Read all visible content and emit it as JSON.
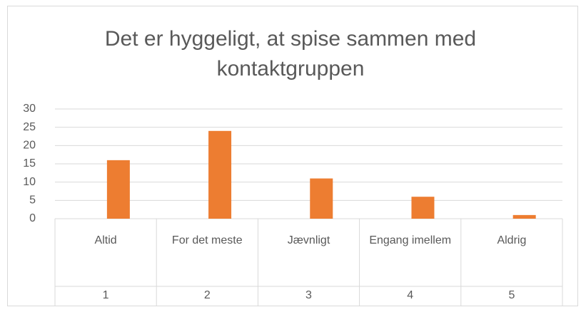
{
  "chart_data": {
    "type": "bar",
    "title": "Det er hyggeligt, at spise sammen med kontaktgruppen",
    "categories": [
      "Altid",
      "For det meste",
      "Jævnligt",
      "Engang imellem",
      "Aldrig"
    ],
    "category_numbers": [
      1,
      2,
      3,
      4,
      5
    ],
    "values": [
      16,
      24,
      11,
      6,
      1
    ],
    "color": "#ed7d31",
    "ylim": [
      0,
      30
    ],
    "yticks": [
      0,
      5,
      10,
      15,
      20,
      25,
      30
    ],
    "grid": true
  }
}
